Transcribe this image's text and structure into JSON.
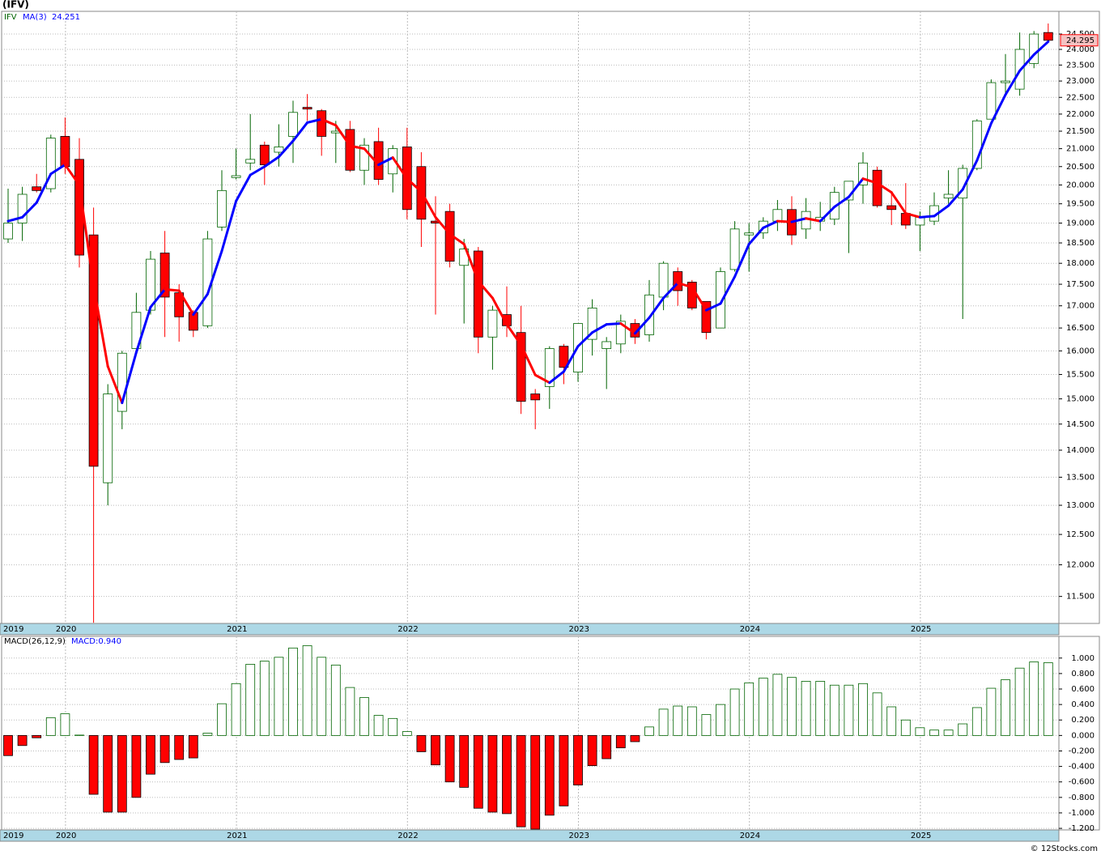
{
  "title": "(IFV)",
  "footer": "© 12Stocks.com",
  "chart_data": [
    {
      "type": "candlestick",
      "legend_symbol": "IFV",
      "log_scale": true,
      "grid": true,
      "categories": [
        "2019",
        null,
        null,
        null,
        "2020",
        null,
        null,
        null,
        null,
        null,
        null,
        null,
        null,
        null,
        null,
        null,
        "2021",
        null,
        null,
        null,
        null,
        null,
        null,
        null,
        null,
        null,
        null,
        null,
        "2022",
        null,
        null,
        null,
        null,
        null,
        null,
        null,
        null,
        null,
        null,
        null,
        "2023",
        null,
        null,
        null,
        null,
        null,
        null,
        null,
        null,
        null,
        null,
        null,
        "2024",
        null,
        null,
        null,
        null,
        null,
        null,
        null,
        null,
        null,
        null,
        null,
        "2025",
        null,
        null,
        null,
        null,
        null,
        null,
        null,
        null,
        null
      ],
      "up_color": "#006400",
      "down_color": "#ff0000",
      "open": [
        18.6,
        19.0,
        19.95,
        19.9,
        21.35,
        20.7,
        18.7,
        13.4,
        14.75,
        16.05,
        16.9,
        18.25,
        17.3,
        16.85,
        16.55,
        18.9,
        20.2,
        20.6,
        21.1,
        20.9,
        21.35,
        22.2,
        22.1,
        21.45,
        21.55,
        20.4,
        21.2,
        20.3,
        21.05,
        20.5,
        19.05,
        19.3,
        17.95,
        18.3,
        16.3,
        16.8,
        16.4,
        15.1,
        15.25,
        16.1,
        15.55,
        16.25,
        16.05,
        16.15,
        16.6,
        16.35,
        17.2,
        17.8,
        17.55,
        17.1,
        16.5,
        17.85,
        18.7,
        18.75,
        19.05,
        19.35,
        18.85,
        19.05,
        19.1,
        19.6,
        20.0,
        20.4,
        19.45,
        19.25,
        18.95,
        19.05,
        19.65,
        19.65,
        20.45,
        21.85,
        22.95,
        22.75,
        23.55,
        24.55
      ],
      "high": [
        19.9,
        19.95,
        20.3,
        21.4,
        21.9,
        21.3,
        19.4,
        15.3,
        16.0,
        17.3,
        18.3,
        18.8,
        17.5,
        16.9,
        18.8,
        20.4,
        21.0,
        22.0,
        21.2,
        21.7,
        22.4,
        22.6,
        22.15,
        21.8,
        21.8,
        21.3,
        21.6,
        21.1,
        21.6,
        20.9,
        19.7,
        19.5,
        18.6,
        18.4,
        17.0,
        17.45,
        17.0,
        15.2,
        16.1,
        16.15,
        16.6,
        17.15,
        16.3,
        16.8,
        16.7,
        17.6,
        18.05,
        17.9,
        17.6,
        17.1,
        17.9,
        19.05,
        19.0,
        19.15,
        19.6,
        19.7,
        19.65,
        19.55,
        19.95,
        20.1,
        20.9,
        20.5,
        19.8,
        20.05,
        19.3,
        19.8,
        20.4,
        20.55,
        21.85,
        23.05,
        23.85,
        24.55,
        24.6,
        24.85
      ],
      "low": [
        18.5,
        18.55,
        19.8,
        19.8,
        20.3,
        17.9,
        11.1,
        13.0,
        14.4,
        15.95,
        16.8,
        16.3,
        16.2,
        16.3,
        16.5,
        18.8,
        20.15,
        20.4,
        20.0,
        20.5,
        20.6,
        21.8,
        20.8,
        20.6,
        20.35,
        20.0,
        20.0,
        19.8,
        19.1,
        18.4,
        16.8,
        17.9,
        16.6,
        15.95,
        15.6,
        16.3,
        14.7,
        14.4,
        14.8,
        15.3,
        15.35,
        15.9,
        15.2,
        15.95,
        16.15,
        16.2,
        16.9,
        17.0,
        16.9,
        16.25,
        16.5,
        17.8,
        17.8,
        18.6,
        18.8,
        18.45,
        18.6,
        18.8,
        18.95,
        18.25,
        19.5,
        19.4,
        18.95,
        18.85,
        18.3,
        18.95,
        19.5,
        16.7,
        20.4,
        21.85,
        22.6,
        22.55,
        23.4,
        24.25
      ],
      "close": [
        19.0,
        19.75,
        19.85,
        21.3,
        20.5,
        18.2,
        13.7,
        15.1,
        15.95,
        16.85,
        18.1,
        17.2,
        16.75,
        16.45,
        18.6,
        19.85,
        20.25,
        20.7,
        20.55,
        21.05,
        22.05,
        22.15,
        21.35,
        21.5,
        20.4,
        21.1,
        20.15,
        21.0,
        19.35,
        19.1,
        19.0,
        18.05,
        18.35,
        16.3,
        16.9,
        16.55,
        14.95,
        14.98,
        16.05,
        15.65,
        16.6,
        16.95,
        16.2,
        16.65,
        16.3,
        17.25,
        18.0,
        17.35,
        16.95,
        16.4,
        17.8,
        18.85,
        18.75,
        19.05,
        19.35,
        18.7,
        19.3,
        19.15,
        19.8,
        20.1,
        20.6,
        19.45,
        19.35,
        18.95,
        19.15,
        19.45,
        19.75,
        20.45,
        21.8,
        22.95,
        23.0,
        24.0,
        24.5,
        24.295
      ],
      "series": [
        {
          "name": "MA(3)",
          "color": "#0000ff",
          "down_color": "#ff0000",
          "values": [
            19.05,
            19.15,
            19.53,
            20.3,
            20.55,
            20.0,
            17.47,
            15.67,
            14.92,
            15.97,
            16.97,
            17.38,
            17.35,
            16.8,
            17.27,
            18.3,
            19.57,
            20.27,
            20.5,
            20.77,
            21.22,
            21.75,
            21.85,
            21.67,
            21.08,
            21.0,
            20.55,
            20.75,
            20.17,
            19.82,
            19.15,
            18.72,
            18.47,
            17.57,
            17.18,
            16.58,
            16.13,
            15.49,
            15.33,
            15.56,
            16.1,
            16.4,
            16.58,
            16.6,
            16.38,
            16.73,
            17.18,
            17.53,
            17.43,
            16.9,
            17.05,
            17.68,
            18.47,
            18.88,
            19.05,
            19.03,
            19.12,
            19.05,
            19.42,
            19.68,
            20.17,
            20.05,
            19.8,
            19.25,
            19.15,
            19.18,
            19.45,
            19.88,
            20.67,
            21.73,
            22.58,
            23.32,
            23.83,
            24.251
          ]
        }
      ],
      "ylim": [
        11.09,
        25.26
      ],
      "yticks": [
        {
          "value": 24.5,
          "label": "24.500"
        },
        {
          "value": 24,
          "label": "24.000"
        },
        {
          "value": 23.5,
          "label": "23.500"
        },
        {
          "value": 23,
          "label": "23.000"
        },
        {
          "value": 22.5,
          "label": "22.500"
        },
        {
          "value": 22,
          "label": "22.000"
        },
        {
          "value": 21.5,
          "label": "21.500"
        },
        {
          "value": 21,
          "label": "21.000"
        },
        {
          "value": 20.5,
          "label": "20.500"
        },
        {
          "value": 20,
          "label": "20.000"
        },
        {
          "value": 19.5,
          "label": "19.500"
        },
        {
          "value": 19,
          "label": "19.000"
        },
        {
          "value": 18.5,
          "label": "18.500"
        },
        {
          "value": 18,
          "label": "18.000"
        },
        {
          "value": 17.5,
          "label": "17.500"
        },
        {
          "value": 17,
          "label": "17.000"
        },
        {
          "value": 16.5,
          "label": "16.500"
        },
        {
          "value": 16,
          "label": "16.000"
        },
        {
          "value": 15.5,
          "label": "15.500"
        },
        {
          "value": 15,
          "label": "15.000"
        },
        {
          "value": 14.5,
          "label": "14.500"
        },
        {
          "value": 14,
          "label": "14.000"
        },
        {
          "value": 13.5,
          "label": "13.500"
        },
        {
          "value": 13,
          "label": "13.000"
        },
        {
          "value": 12.5,
          "label": "12.500"
        },
        {
          "value": 12,
          "label": "12.000"
        },
        {
          "value": 11.5,
          "label": "11.500"
        }
      ]
    },
    {
      "type": "bar",
      "legend_name": "MACD(26,12,9)",
      "legend_value": "MACD:0.940",
      "grid": true,
      "up_color": "#006400",
      "down_color": "#ff0000",
      "categories": [
        "2019",
        null,
        null,
        null,
        "2020",
        null,
        null,
        null,
        null,
        null,
        null,
        null,
        null,
        null,
        null,
        null,
        "2021",
        null,
        null,
        null,
        null,
        null,
        null,
        null,
        null,
        null,
        null,
        null,
        "2022",
        null,
        null,
        null,
        null,
        null,
        null,
        null,
        null,
        null,
        null,
        null,
        "2023",
        null,
        null,
        null,
        null,
        null,
        null,
        null,
        null,
        null,
        null,
        null,
        "2024",
        null,
        null,
        null,
        null,
        null,
        null,
        null,
        null,
        null,
        null,
        null,
        "2025",
        null,
        null,
        null,
        null,
        null,
        null,
        null,
        null,
        null
      ],
      "values": [
        -0.26,
        -0.13,
        -0.03,
        0.23,
        0.28,
        0.005,
        -0.76,
        -0.99,
        -0.99,
        -0.8,
        -0.5,
        -0.35,
        -0.31,
        -0.29,
        0.03,
        0.41,
        0.67,
        0.92,
        0.96,
        1.01,
        1.13,
        1.16,
        1.01,
        0.91,
        0.62,
        0.49,
        0.26,
        0.22,
        0.05,
        -0.21,
        -0.38,
        -0.6,
        -0.67,
        -0.94,
        -0.99,
        -1.01,
        -1.18,
        -1.21,
        -1.03,
        -0.91,
        -0.64,
        -0.39,
        -0.3,
        -0.16,
        -0.08,
        0.11,
        0.34,
        0.38,
        0.37,
        0.27,
        0.4,
        0.6,
        0.68,
        0.74,
        0.79,
        0.75,
        0.7,
        0.7,
        0.65,
        0.65,
        0.67,
        0.55,
        0.37,
        0.2,
        0.1,
        0.07,
        0.07,
        0.15,
        0.36,
        0.61,
        0.72,
        0.87,
        0.95,
        0.94
      ],
      "ylim": [
        -1.22,
        1.28
      ],
      "yticks": [
        {
          "value": 1,
          "label": "1.000"
        },
        {
          "value": 0.8,
          "label": "0.800"
        },
        {
          "value": 0.6,
          "label": "0.600"
        },
        {
          "value": 0.4,
          "label": "0.400"
        },
        {
          "value": 0.2,
          "label": "0.200"
        },
        {
          "value": 0,
          "label": "0.000"
        },
        {
          "value": -0.2,
          "label": "-0.200"
        },
        {
          "value": -0.4,
          "label": "-0.400"
        },
        {
          "value": -0.6,
          "label": "-0.600"
        },
        {
          "value": -0.8,
          "label": "-0.800"
        },
        {
          "value": -1,
          "label": "-1.000"
        },
        {
          "value": -1.2,
          "label": "-1.200"
        }
      ]
    }
  ]
}
